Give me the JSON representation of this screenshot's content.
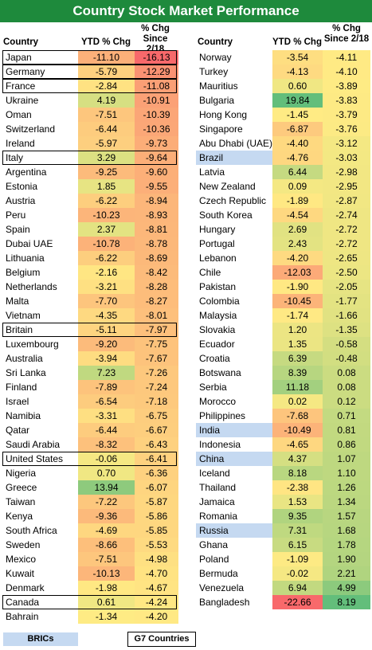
{
  "title": "Country Stock Market Performance",
  "headers": {
    "country": "Country",
    "ytd": "YTD % Chg",
    "since_top": "% Chg",
    "since_bottom": "Since 2/18"
  },
  "legend": {
    "bric": "BRICs",
    "g7": "G7 Countries"
  },
  "colors": {
    "title_bg": "#1e8a3c",
    "bric_fill": "#c5d9f1",
    "neg": "#f8696b",
    "mid": "#ffeb84",
    "pos": "#63be7b"
  },
  "chart_data": {
    "type": "table",
    "title": "Country Stock Market Performance",
    "columns": [
      "Country",
      "YTD % Chg",
      "% Chg Since 2/18"
    ],
    "rows": [
      {
        "country": "Japan",
        "ytd": "-11.10",
        "since": "-16.13",
        "group": "g7"
      },
      {
        "country": "Germany",
        "ytd": "-5.79",
        "since": "-12.29",
        "group": "g7"
      },
      {
        "country": "France",
        "ytd": "-2.84",
        "since": "-11.08",
        "group": "g7"
      },
      {
        "country": "Ukraine",
        "ytd": "4.19",
        "since": "-10.91"
      },
      {
        "country": "Oman",
        "ytd": "-7.51",
        "since": "-10.39"
      },
      {
        "country": "Switzerland",
        "ytd": "-6.44",
        "since": "-10.36"
      },
      {
        "country": "Ireland",
        "ytd": "-5.97",
        "since": "-9.73"
      },
      {
        "country": "Italy",
        "ytd": "3.29",
        "since": "-9.64",
        "group": "g7"
      },
      {
        "country": "Argentina",
        "ytd": "-9.25",
        "since": "-9.60"
      },
      {
        "country": "Estonia",
        "ytd": "1.85",
        "since": "-9.55"
      },
      {
        "country": "Austria",
        "ytd": "-6.22",
        "since": "-8.94"
      },
      {
        "country": "Peru",
        "ytd": "-10.23",
        "since": "-8.93"
      },
      {
        "country": "Spain",
        "ytd": "2.37",
        "since": "-8.81"
      },
      {
        "country": "Dubai UAE",
        "ytd": "-10.78",
        "since": "-8.78"
      },
      {
        "country": "Lithuania",
        "ytd": "-6.22",
        "since": "-8.69"
      },
      {
        "country": "Belgium",
        "ytd": "-2.16",
        "since": "-8.42"
      },
      {
        "country": "Netherlands",
        "ytd": "-3.21",
        "since": "-8.28"
      },
      {
        "country": "Malta",
        "ytd": "-7.70",
        "since": "-8.27"
      },
      {
        "country": "Vietnam",
        "ytd": "-4.35",
        "since": "-8.01"
      },
      {
        "country": "Britain",
        "ytd": "-5.11",
        "since": "-7.97",
        "group": "g7"
      },
      {
        "country": "Luxembourg",
        "ytd": "-9.20",
        "since": "-7.75"
      },
      {
        "country": "Australia",
        "ytd": "-3.94",
        "since": "-7.67"
      },
      {
        "country": "Sri Lanka",
        "ytd": "7.23",
        "since": "-7.26"
      },
      {
        "country": "Finland",
        "ytd": "-7.89",
        "since": "-7.24"
      },
      {
        "country": "Israel",
        "ytd": "-6.54",
        "since": "-7.18"
      },
      {
        "country": "Namibia",
        "ytd": "-3.31",
        "since": "-6.75"
      },
      {
        "country": "Qatar",
        "ytd": "-6.44",
        "since": "-6.67"
      },
      {
        "country": "Saudi Arabia",
        "ytd": "-8.32",
        "since": "-6.43"
      },
      {
        "country": "United States",
        "ytd": "-0.06",
        "since": "-6.41",
        "group": "g7"
      },
      {
        "country": "Nigeria",
        "ytd": "0.70",
        "since": "-6.36"
      },
      {
        "country": "Greece",
        "ytd": "13.94",
        "since": "-6.07"
      },
      {
        "country": "Taiwan",
        "ytd": "-7.22",
        "since": "-5.87"
      },
      {
        "country": "Kenya",
        "ytd": "-9.36",
        "since": "-5.86"
      },
      {
        "country": "South Africa",
        "ytd": "-4.69",
        "since": "-5.85"
      },
      {
        "country": "Sweden",
        "ytd": "-8.66",
        "since": "-5.53"
      },
      {
        "country": "Mexico",
        "ytd": "-7.51",
        "since": "-4.98"
      },
      {
        "country": "Kuwait",
        "ytd": "-10.13",
        "since": "-4.70"
      },
      {
        "country": "Denmark",
        "ytd": "-1.98",
        "since": "-4.67"
      },
      {
        "country": "Canada",
        "ytd": "0.61",
        "since": "-4.24",
        "group": "g7"
      },
      {
        "country": "Bahrain",
        "ytd": "-1.34",
        "since": "-4.20"
      },
      {
        "country": "Norway",
        "ytd": "-3.54",
        "since": "-4.11"
      },
      {
        "country": "Turkey",
        "ytd": "-4.13",
        "since": "-4.10"
      },
      {
        "country": "Mauritius",
        "ytd": "0.60",
        "since": "-3.89"
      },
      {
        "country": "Bulgaria",
        "ytd": "19.84",
        "since": "-3.83"
      },
      {
        "country": "Hong Kong",
        "ytd": "-1.45",
        "since": "-3.79"
      },
      {
        "country": "Singapore",
        "ytd": "-6.87",
        "since": "-3.76"
      },
      {
        "country": "Abu Dhabi (UAE)",
        "ytd": "-4.40",
        "since": "-3.12"
      },
      {
        "country": "Brazil",
        "ytd": "-4.76",
        "since": "-3.03",
        "group": "bric"
      },
      {
        "country": "Latvia",
        "ytd": "6.44",
        "since": "-2.98"
      },
      {
        "country": "New Zealand",
        "ytd": "0.09",
        "since": "-2.95"
      },
      {
        "country": "Czech Republic",
        "ytd": "-1.89",
        "since": "-2.87"
      },
      {
        "country": "South Korea",
        "ytd": "-4.54",
        "since": "-2.74"
      },
      {
        "country": "Hungary",
        "ytd": "2.69",
        "since": "-2.72"
      },
      {
        "country": "Portugal",
        "ytd": "2.43",
        "since": "-2.72"
      },
      {
        "country": "Lebanon",
        "ytd": "-4.20",
        "since": "-2.65"
      },
      {
        "country": "Chile",
        "ytd": "-12.03",
        "since": "-2.50"
      },
      {
        "country": "Pakistan",
        "ytd": "-1.90",
        "since": "-2.05"
      },
      {
        "country": "Colombia",
        "ytd": "-10.45",
        "since": "-1.77"
      },
      {
        "country": "Malaysia",
        "ytd": "-1.74",
        "since": "-1.66"
      },
      {
        "country": "Slovakia",
        "ytd": "1.20",
        "since": "-1.35"
      },
      {
        "country": "Ecuador",
        "ytd": "1.35",
        "since": "-0.58"
      },
      {
        "country": "Croatia",
        "ytd": "6.39",
        "since": "-0.48"
      },
      {
        "country": "Botswana",
        "ytd": "8.39",
        "since": "0.08"
      },
      {
        "country": "Serbia",
        "ytd": "11.18",
        "since": "0.08"
      },
      {
        "country": "Morocco",
        "ytd": "0.02",
        "since": "0.12"
      },
      {
        "country": "Philippines",
        "ytd": "-7.68",
        "since": "0.71"
      },
      {
        "country": "India",
        "ytd": "-10.49",
        "since": "0.81",
        "group": "bric"
      },
      {
        "country": "Indonesia",
        "ytd": "-4.65",
        "since": "0.86"
      },
      {
        "country": "China",
        "ytd": "4.37",
        "since": "1.07",
        "group": "bric"
      },
      {
        "country": "Iceland",
        "ytd": "8.18",
        "since": "1.10"
      },
      {
        "country": "Thailand",
        "ytd": "-2.38",
        "since": "1.26"
      },
      {
        "country": "Jamaica",
        "ytd": "1.53",
        "since": "1.34"
      },
      {
        "country": "Romania",
        "ytd": "9.35",
        "since": "1.57"
      },
      {
        "country": "Russia",
        "ytd": "7.31",
        "since": "1.68",
        "group": "bric"
      },
      {
        "country": "Ghana",
        "ytd": "6.15",
        "since": "1.78"
      },
      {
        "country": "Poland",
        "ytd": "-1.09",
        "since": "1.90"
      },
      {
        "country": "Bermuda",
        "ytd": "-0.02",
        "since": "2.21"
      },
      {
        "country": "Venezuela",
        "ytd": "6.94",
        "since": "4.99"
      },
      {
        "country": "Bangladesh",
        "ytd": "-22.66",
        "since": "8.19"
      }
    ]
  }
}
